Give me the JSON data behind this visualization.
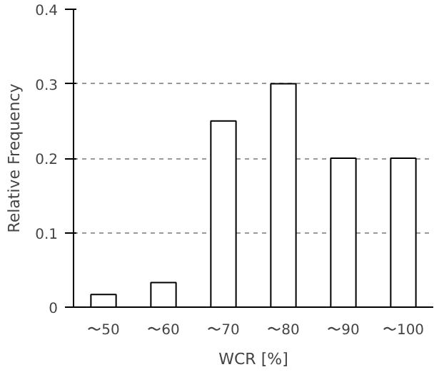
{
  "chart_data": {
    "type": "bar",
    "xlabel": "WCR [%]",
    "ylabel": "Relative Frequency",
    "categories": [
      "〜50",
      "〜60",
      "〜70",
      "〜80",
      "〜90",
      "〜100"
    ],
    "values": [
      0.017,
      0.033,
      0.25,
      0.3,
      0.2,
      0.2
    ],
    "color": "#ffffff",
    "ylim": [
      0,
      0.4
    ],
    "yticks": [
      0,
      0.1,
      0.2,
      0.3,
      0.4
    ],
    "grid": "y"
  }
}
